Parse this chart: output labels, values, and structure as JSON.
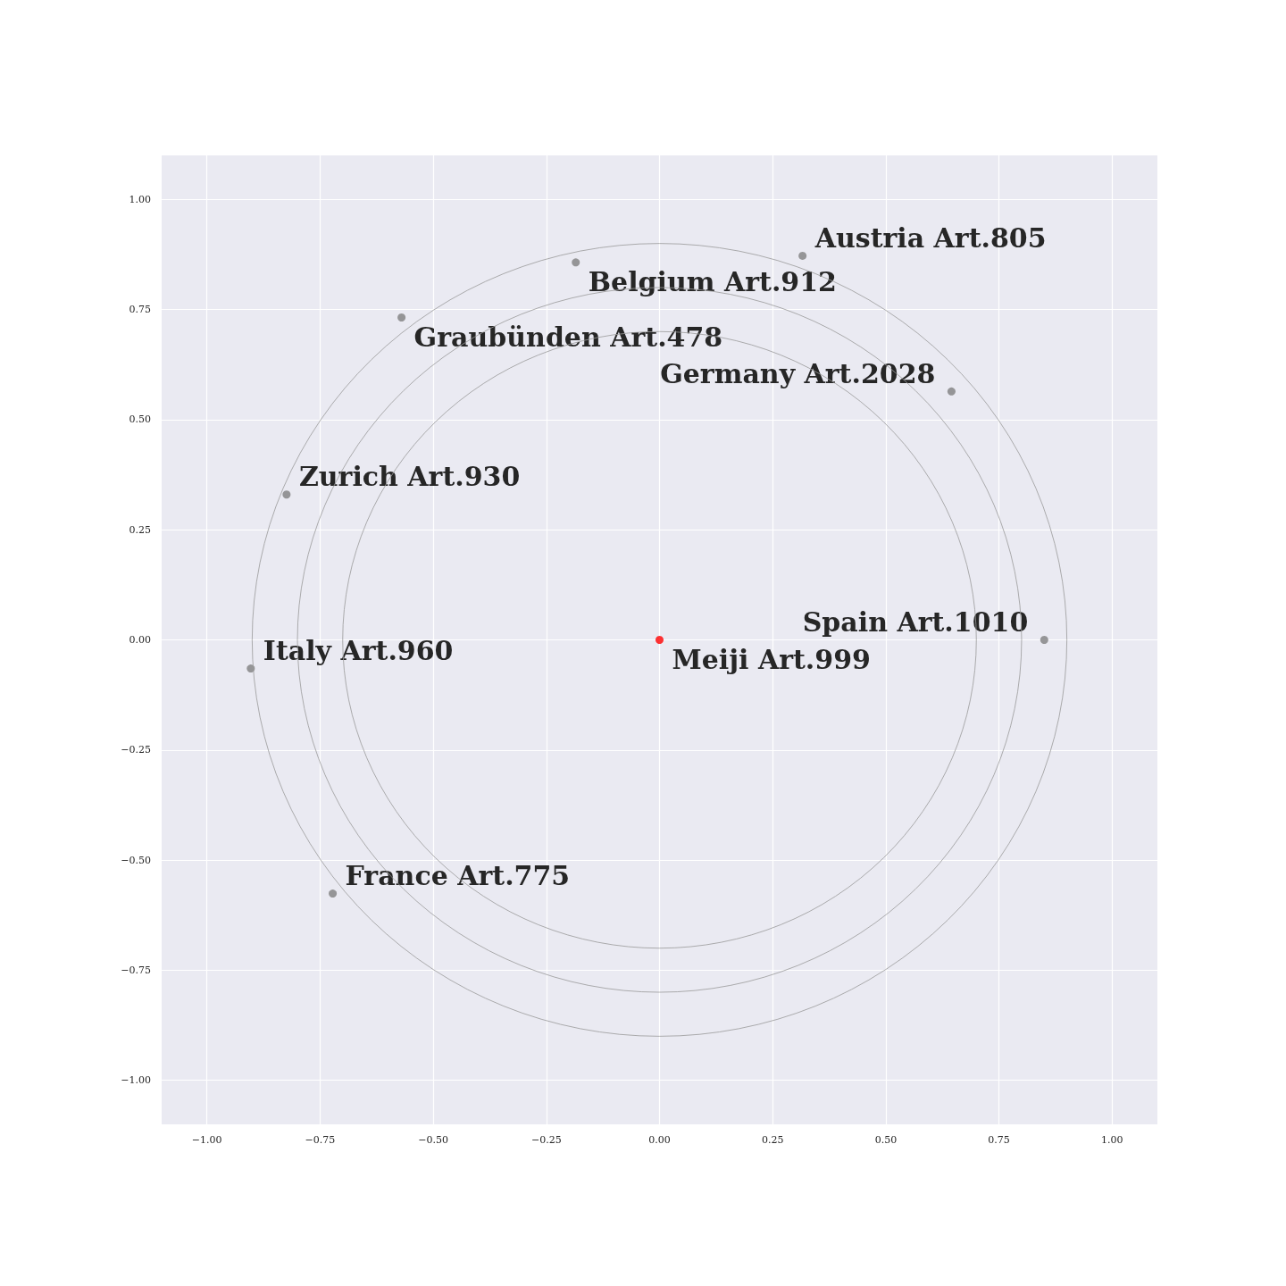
{
  "chart_data": {
    "type": "scatter",
    "xlim": [
      -1.1,
      1.1
    ],
    "ylim": [
      -1.1,
      1.1
    ],
    "xticks": [
      {
        "value": -1,
        "label": "−1.00"
      },
      {
        "value": -0.75,
        "label": "−0.75"
      },
      {
        "value": -0.5,
        "label": "−0.50"
      },
      {
        "value": -0.25,
        "label": "−0.25"
      },
      {
        "value": 0,
        "label": "0.00"
      },
      {
        "value": 0.25,
        "label": "0.25"
      },
      {
        "value": 0.5,
        "label": "0.50"
      },
      {
        "value": 0.75,
        "label": "0.75"
      },
      {
        "value": 1,
        "label": "1.00"
      }
    ],
    "yticks": [
      {
        "value": -1,
        "label": "−1.00"
      },
      {
        "value": -0.75,
        "label": "−0.75"
      },
      {
        "value": -0.5,
        "label": "−0.50"
      },
      {
        "value": -0.25,
        "label": "−0.25"
      },
      {
        "value": 0,
        "label": "0.00"
      },
      {
        "value": 0.25,
        "label": "0.25"
      },
      {
        "value": 0.5,
        "label": "0.50"
      },
      {
        "value": 0.75,
        "label": "0.75"
      },
      {
        "value": 1,
        "label": "1.00"
      }
    ],
    "grid": true,
    "marker": "circle",
    "series": [
      {
        "x": [
          0.316,
          -0.185,
          -0.57,
          0.645,
          -0.824,
          0.85,
          0,
          -0.903,
          -0.722
        ],
        "values": [
          0.872,
          0.857,
          0.732,
          0.564,
          0.33,
          0,
          0,
          -0.065,
          -0.576
        ],
        "colors": [
          "#808080",
          "#808080",
          "#808080",
          "#808080",
          "#808080",
          "#808080",
          "#ff0000",
          "#808080",
          "#808080"
        ]
      }
    ],
    "annotations": [
      {
        "text": "Austria Art.805",
        "x": 0.316,
        "y": 0.872
      },
      {
        "text": "Belgium Art.912",
        "x": -0.185,
        "y": 0.857
      },
      {
        "text": "Graubünden Art.478",
        "x": -0.57,
        "y": 0.732
      },
      {
        "text": "Germany Art.2028",
        "x": 0.645,
        "y": 0.564
      },
      {
        "text": "Zurich Art.930",
        "x": -0.824,
        "y": 0.33
      },
      {
        "text": "Spain Art.1010",
        "x": 0.85,
        "y": 0
      },
      {
        "text": "Meiji Art.999",
        "x": 0,
        "y": 0
      },
      {
        "text": "Italy Art.960",
        "x": -0.903,
        "y": -0.065
      },
      {
        "text": "France Art.775",
        "x": -0.722,
        "y": -0.576
      }
    ]
  }
}
